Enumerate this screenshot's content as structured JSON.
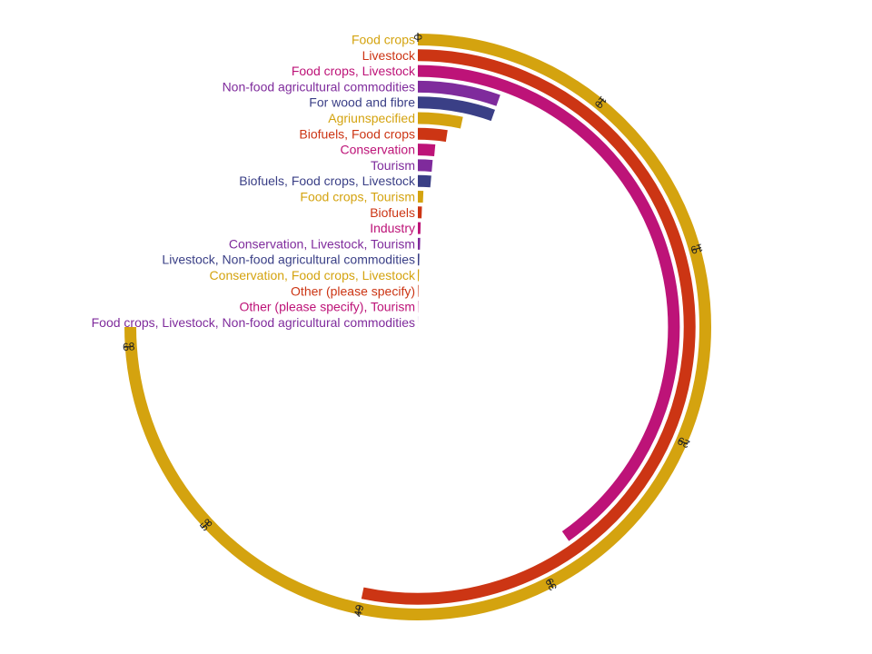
{
  "chart_data": {
    "type": "bar",
    "orientation": "radial",
    "title": "",
    "categories": [
      "Food crops",
      "Livestock",
      "Food crops, Livestock",
      "Non-food agricultural commodities",
      "For wood and fibre",
      "Agriunspecified",
      "Biofuels, Food crops",
      "Conservation",
      "Tourism",
      "Biofuels, Food crops, Livestock",
      "Food crops, Tourism",
      "Biofuels",
      "Industry",
      "Conservation, Livestock, Tourism",
      "Livestock, Non-food agricultural commodities",
      "Conservation, Food crops, Livestock",
      "Other (please specify)",
      "Other (please specify), Tourism",
      "Food crops, Livestock, Non-food agricultural commodities"
    ],
    "values": [
      69,
      49,
      37,
      5,
      5,
      3.1,
      2.2,
      1.4,
      1.3,
      1.3,
      0.6,
      0.5,
      0.4,
      0.4,
      0.3,
      0.3,
      0.2,
      0.15,
      0.1
    ],
    "colors": [
      "#D4A30F",
      "#CC3514",
      "#BD1378",
      "#7F2B9C",
      "#3A3F86"
    ],
    "ticks": [
      0,
      10,
      19,
      29,
      39,
      49,
      58,
      68
    ],
    "range": [
      0,
      69
    ]
  }
}
